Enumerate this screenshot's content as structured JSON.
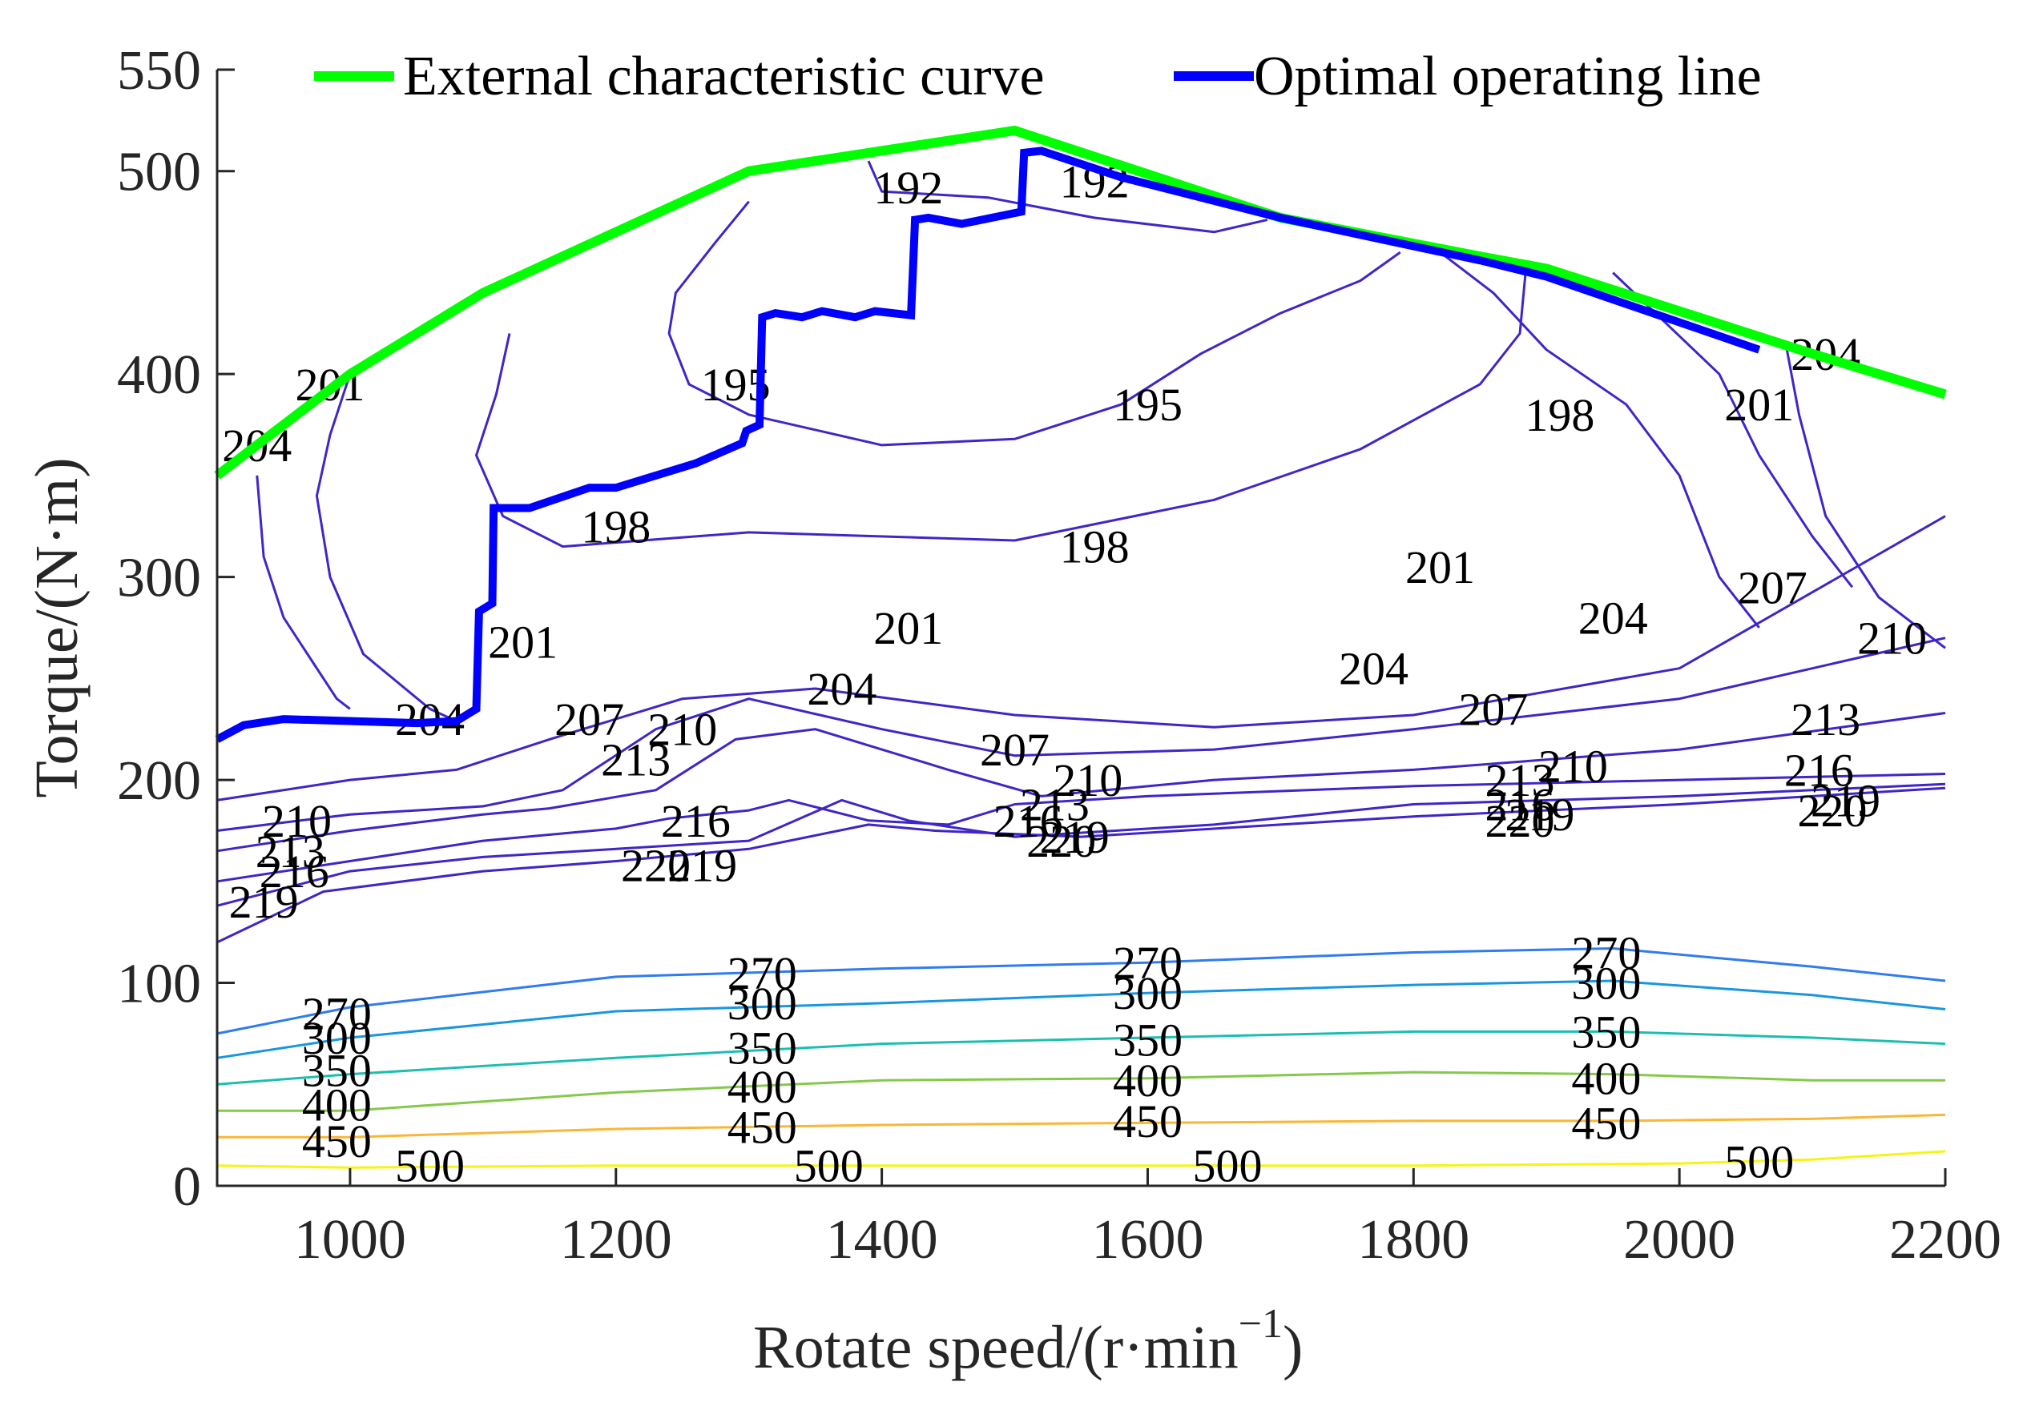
{
  "chart_data": {
    "type": "contour",
    "title": "",
    "xlabel": "Rotate speed/(r·min",
    "xlabel_sup": "−1",
    "xlabel_close": ")",
    "ylabel": "Torque/(N·m)",
    "xlim": [
      900,
      2200
    ],
    "ylim": [
      0,
      550
    ],
    "x_ticks": [
      1000,
      1200,
      1400,
      1600,
      1800,
      2000,
      2200
    ],
    "y_ticks": [
      0,
      100,
      200,
      300,
      400,
      500,
      550
    ],
    "grid": false,
    "legend_position": "top",
    "legend": [
      {
        "label": "External characteristic curve",
        "color": "#00ff00"
      },
      {
        "label": "Optimal operating line",
        "color": "#0000ff"
      }
    ],
    "contour_levels": [
      192,
      195,
      198,
      201,
      204,
      207,
      210,
      213,
      216,
      219,
      220,
      270,
      300,
      350,
      400,
      450,
      500
    ],
    "contour_colors": {
      "192-220": "#3e26c8",
      "270": "#2f7cf0",
      "300": "#1896e0",
      "350": "#1bbfb0",
      "400": "#86c84a",
      "450": "#fbb633",
      "500": "#f5f510"
    },
    "series": [
      {
        "name": "External characteristic curve",
        "color": "#00ff00",
        "x": [
          900,
          1000,
          1100,
          1300,
          1500,
          1700,
          1850,
          1900,
          2100,
          2200
        ],
        "y": [
          350,
          400,
          440,
          500,
          520,
          477,
          458,
          452,
          410,
          390
        ]
      },
      {
        "name": "Optimal operating line",
        "color": "#0000ff",
        "x": [
          900,
          920,
          950,
          1050,
          1080,
          1095,
          1097,
          1107,
          1108,
          1135,
          1180,
          1200,
          1260,
          1295,
          1298,
          1308,
          1310,
          1320,
          1340,
          1355,
          1380,
          1395,
          1422,
          1425,
          1435,
          1460,
          1505,
          1507,
          1520,
          1580,
          1700,
          1850,
          1900,
          2060
        ],
        "y": [
          220,
          227,
          230,
          228,
          229,
          235,
          283,
          287,
          334,
          334,
          344,
          344,
          356,
          366,
          372,
          375,
          428,
          430,
          428,
          431,
          428,
          431,
          429,
          476,
          477,
          474,
          480,
          509,
          510,
          497,
          477,
          456,
          448,
          412
        ]
      }
    ],
    "contour_label_annotations": [
      {
        "text": "192",
        "x": 1420,
        "y": 492
      },
      {
        "text": "192",
        "x": 1560,
        "y": 495
      },
      {
        "text": "195",
        "x": 1290,
        "y": 395
      },
      {
        "text": "195",
        "x": 1600,
        "y": 385
      },
      {
        "text": "198",
        "x": 1200,
        "y": 325
      },
      {
        "text": "198",
        "x": 1560,
        "y": 315
      },
      {
        "text": "198",
        "x": 1910,
        "y": 380
      },
      {
        "text": "201",
        "x": 985,
        "y": 395
      },
      {
        "text": "201",
        "x": 1130,
        "y": 268
      },
      {
        "text": "201",
        "x": 1420,
        "y": 275
      },
      {
        "text": "201",
        "x": 1820,
        "y": 305
      },
      {
        "text": "201",
        "x": 2060,
        "y": 385
      },
      {
        "text": "204",
        "x": 930,
        "y": 365
      },
      {
        "text": "204",
        "x": 1060,
        "y": 230
      },
      {
        "text": "204",
        "x": 1370,
        "y": 245
      },
      {
        "text": "204",
        "x": 1770,
        "y": 255
      },
      {
        "text": "204",
        "x": 1950,
        "y": 280
      },
      {
        "text": "204",
        "x": 2110,
        "y": 410
      },
      {
        "text": "207",
        "x": 1180,
        "y": 230
      },
      {
        "text": "207",
        "x": 1500,
        "y": 215
      },
      {
        "text": "207",
        "x": 1860,
        "y": 235
      },
      {
        "text": "207",
        "x": 2070,
        "y": 295
      },
      {
        "text": "210",
        "x": 960,
        "y": 180
      },
      {
        "text": "210",
        "x": 1250,
        "y": 225
      },
      {
        "text": "210",
        "x": 1555,
        "y": 200
      },
      {
        "text": "210",
        "x": 1920,
        "y": 207
      },
      {
        "text": "210",
        "x": 2160,
        "y": 270
      },
      {
        "text": "213",
        "x": 955,
        "y": 165
      },
      {
        "text": "213",
        "x": 1215,
        "y": 210
      },
      {
        "text": "213",
        "x": 1530,
        "y": 188
      },
      {
        "text": "213",
        "x": 1880,
        "y": 200
      },
      {
        "text": "213",
        "x": 2110,
        "y": 230
      },
      {
        "text": "216",
        "x": 958,
        "y": 155
      },
      {
        "text": "216",
        "x": 1260,
        "y": 180
      },
      {
        "text": "216",
        "x": 1510,
        "y": 180
      },
      {
        "text": "216",
        "x": 1880,
        "y": 188
      },
      {
        "text": "216",
        "x": 2105,
        "y": 205
      },
      {
        "text": "219",
        "x": 935,
        "y": 140
      },
      {
        "text": "219",
        "x": 1265,
        "y": 158
      },
      {
        "text": "219",
        "x": 1545,
        "y": 172
      },
      {
        "text": "219",
        "x": 1895,
        "y": 183
      },
      {
        "text": "219",
        "x": 2125,
        "y": 190
      },
      {
        "text": "220",
        "x": 1230,
        "y": 158
      },
      {
        "text": "220",
        "x": 1535,
        "y": 170
      },
      {
        "text": "220",
        "x": 1880,
        "y": 180
      },
      {
        "text": "220",
        "x": 2115,
        "y": 185
      },
      {
        "text": "270",
        "x": 990,
        "y": 85
      },
      {
        "text": "270",
        "x": 1310,
        "y": 105
      },
      {
        "text": "270",
        "x": 1600,
        "y": 110
      },
      {
        "text": "270",
        "x": 1945,
        "y": 115
      },
      {
        "text": "300",
        "x": 990,
        "y": 73
      },
      {
        "text": "300",
        "x": 1310,
        "y": 90
      },
      {
        "text": "300",
        "x": 1600,
        "y": 95
      },
      {
        "text": "300",
        "x": 1945,
        "y": 100
      },
      {
        "text": "350",
        "x": 990,
        "y": 57
      },
      {
        "text": "350",
        "x": 1310,
        "y": 68
      },
      {
        "text": "350",
        "x": 1600,
        "y": 72
      },
      {
        "text": "350",
        "x": 1945,
        "y": 76
      },
      {
        "text": "400",
        "x": 990,
        "y": 40
      },
      {
        "text": "400",
        "x": 1310,
        "y": 49
      },
      {
        "text": "400",
        "x": 1600,
        "y": 52
      },
      {
        "text": "400",
        "x": 1945,
        "y": 53
      },
      {
        "text": "450",
        "x": 990,
        "y": 22
      },
      {
        "text": "450",
        "x": 1310,
        "y": 29
      },
      {
        "text": "450",
        "x": 1600,
        "y": 32
      },
      {
        "text": "450",
        "x": 1945,
        "y": 31
      },
      {
        "text": "500",
        "x": 1060,
        "y": 10
      },
      {
        "text": "500",
        "x": 1360,
        "y": 10
      },
      {
        "text": "500",
        "x": 1660,
        "y": 10
      },
      {
        "text": "500",
        "x": 2060,
        "y": 12
      }
    ]
  }
}
